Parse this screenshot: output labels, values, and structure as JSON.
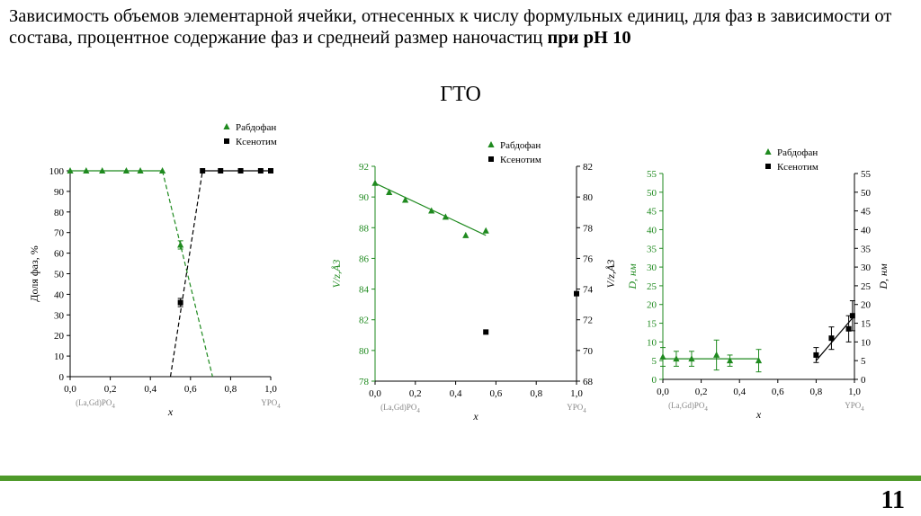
{
  "slide": {
    "title_main": "Зависимость объемов элементарной ячейки, отнесенных к числу формульных единиц, для фаз в зависимости от состава, процентное содержание фаз и среднеий размер наночастиц",
    "title_bold": "при pH 10",
    "subtitle": "ГТО",
    "page_number": "11",
    "colors": {
      "green": "#1f8a1f",
      "black": "#000000",
      "bar": "#4e9a2a"
    }
  },
  "chart_data": [
    {
      "type": "scatter",
      "xlabel": "x",
      "ylabel": "Доля фаз, %",
      "xlim": [
        0,
        1
      ],
      "ylim": [
        0,
        100
      ],
      "x_ticks": [
        "0,0",
        "0,2",
        "0,4",
        "0,6",
        "0,8",
        "1,0"
      ],
      "y_ticks": [
        "0",
        "10",
        "20",
        "30",
        "40",
        "50",
        "60",
        "70",
        "80",
        "90",
        "100"
      ],
      "x_end_labels": {
        "left": "(La,Gd)PO4",
        "right": "YPO4"
      },
      "legend": [
        "Рабдофан",
        "Ксенотим"
      ],
      "series": [
        {
          "name": "Рабдофан",
          "color": "#1f8a1f",
          "marker": "triangle",
          "x": [
            0,
            0.08,
            0.16,
            0.28,
            0.35,
            0.46,
            0.55
          ],
          "y": [
            100,
            100,
            100,
            100,
            100,
            100,
            64
          ],
          "err": [
            0,
            0,
            0,
            0,
            0,
            0,
            2
          ],
          "fit": [
            {
              "x": [
                0,
                0.46
              ],
              "y": [
                100,
                100
              ],
              "dash": false
            },
            {
              "x": [
                0.46,
                0.71
              ],
              "y": [
                100,
                0
              ],
              "dash": true
            }
          ]
        },
        {
          "name": "Ксенотим",
          "color": "#000000",
          "marker": "square",
          "x": [
            0.55,
            0.66,
            0.75,
            0.85,
            0.95,
            1.0
          ],
          "y": [
            36,
            100,
            100,
            100,
            100,
            100
          ],
          "err": [
            2,
            0,
            0,
            0,
            0,
            0
          ],
          "fit": [
            {
              "x": [
                0.5,
                0.66
              ],
              "y": [
                0,
                100
              ],
              "dash": true
            },
            {
              "x": [
                0.66,
                1.0
              ],
              "y": [
                100,
                100
              ],
              "dash": false
            }
          ]
        }
      ]
    },
    {
      "type": "scatter",
      "xlabel": "x",
      "ylabel_left": "V/z,Å3",
      "ylabel_right": "V/z,Å3",
      "xlim": [
        0,
        1
      ],
      "ylim_left": [
        78,
        92
      ],
      "ylim_right": [
        68,
        82
      ],
      "x_ticks": [
        "0,0",
        "0,2",
        "0,4",
        "0,6",
        "0,8",
        "1,0"
      ],
      "y_ticks_left": [
        "78",
        "80",
        "82",
        "84",
        "86",
        "88",
        "90",
        "92"
      ],
      "y_ticks_right": [
        "68",
        "70",
        "72",
        "74",
        "76",
        "78",
        "80",
        "82"
      ],
      "x_end_labels": {
        "left": "(La,Gd)PO4",
        "right": "YPO4"
      },
      "legend": [
        "Рабдофан",
        "Ксенотим"
      ],
      "series": [
        {
          "name": "Рабдофан",
          "color": "#1f8a1f",
          "marker": "triangle",
          "axis": "left",
          "x": [
            0,
            0.07,
            0.15,
            0.28,
            0.35,
            0.45,
            0.55
          ],
          "y": [
            90.9,
            90.3,
            89.8,
            89.1,
            88.7,
            87.5,
            87.8
          ],
          "fit": [
            {
              "x": [
                0,
                0.55
              ],
              "y": [
                90.9,
                87.5
              ],
              "dash": false
            }
          ]
        },
        {
          "name": "Ксенотим",
          "color": "#000000",
          "marker": "square",
          "axis": "right",
          "x": [
            0.55,
            1.0
          ],
          "y": [
            71.2,
            73.7
          ]
        }
      ]
    },
    {
      "type": "scatter",
      "xlabel": "x",
      "ylabel_left": "D, нм",
      "ylabel_right": "D, нм",
      "xlim": [
        0,
        1
      ],
      "ylim_left": [
        0,
        55
      ],
      "ylim_right": [
        0,
        55
      ],
      "x_ticks": [
        "0,0",
        "0,2",
        "0,4",
        "0,6",
        "0,8",
        "1,0"
      ],
      "y_ticks_left": [
        "0",
        "5",
        "10",
        "15",
        "20",
        "25",
        "30",
        "35",
        "40",
        "45",
        "50",
        "55"
      ],
      "y_ticks_right": [
        "0",
        "5",
        "10",
        "15",
        "20",
        "25",
        "30",
        "35",
        "40",
        "45",
        "50",
        "55"
      ],
      "x_end_labels": {
        "left": "(La,Gd)PO4",
        "right": "YPO4"
      },
      "legend": [
        "Рабдофан",
        "Ксенотим"
      ],
      "series": [
        {
          "name": "Рабдофан",
          "color": "#1f8a1f",
          "marker": "triangle",
          "axis": "left",
          "x": [
            0,
            0.07,
            0.15,
            0.28,
            0.35,
            0.5
          ],
          "y": [
            6,
            5.5,
            5.5,
            6.5,
            5,
            5
          ],
          "err": [
            2.5,
            2,
            2,
            4,
            1.5,
            3
          ],
          "fit": [
            {
              "x": [
                0,
                0.5
              ],
              "y": [
                5.5,
                5.5
              ],
              "dash": false
            }
          ]
        },
        {
          "name": "Ксенотим",
          "color": "#000000",
          "marker": "square",
          "axis": "right",
          "x": [
            0.8,
            0.88,
            0.97,
            0.99
          ],
          "y": [
            6.5,
            11,
            13.5,
            17
          ],
          "err": [
            2,
            3,
            3.5,
            4
          ],
          "fit": [
            {
              "x": [
                0.8,
                1.0
              ],
              "y": [
                5,
                17
              ],
              "dash": false
            }
          ]
        }
      ]
    }
  ]
}
